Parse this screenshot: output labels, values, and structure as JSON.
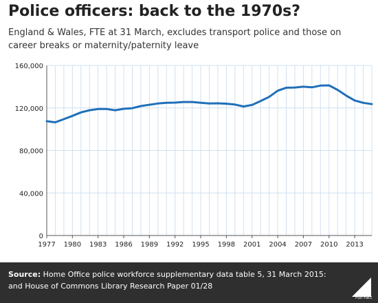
{
  "title": "Police officers: back to the 1970s?",
  "subtitle": "England & Wales, FTE at 31 March, excludes transport police and those on career breaks or maternity/paternity leave",
  "footer": {
    "source_label": "Source:",
    "source_text": "Home Office police workforce supplementary data table 5, 31 March 2015: and House of Commons Library Research Paper 01/28",
    "logo_text": "Full Fact"
  },
  "colors": {
    "line": "#1f6fb8",
    "grid": "#cfe0f1",
    "footer_bg": "#2f2f2f"
  },
  "chart_data": {
    "type": "line",
    "title": "Police officers: back to the 1970s?",
    "xlabel": "",
    "ylabel": "",
    "x": [
      1977,
      1978,
      1979,
      1980,
      1981,
      1982,
      1983,
      1984,
      1985,
      1986,
      1987,
      1988,
      1989,
      1990,
      1991,
      1992,
      1993,
      1994,
      1995,
      1996,
      1997,
      1998,
      1999,
      2000,
      2001,
      2002,
      2003,
      2004,
      2005,
      2006,
      2007,
      2008,
      2009,
      2010,
      2011,
      2012,
      2013,
      2014,
      2015
    ],
    "values": [
      107500,
      106500,
      109500,
      112500,
      115800,
      117800,
      119000,
      119000,
      117800,
      119200,
      119800,
      121800,
      123000,
      124200,
      124800,
      125000,
      125600,
      125600,
      124800,
      124200,
      124400,
      124000,
      123200,
      121400,
      122800,
      126500,
      130400,
      136200,
      139000,
      139200,
      140000,
      139400,
      141000,
      141200,
      137000,
      131600,
      127000,
      124800,
      123600
    ],
    "ylim": [
      0,
      160000
    ],
    "yticks": [
      0,
      40000,
      80000,
      120000,
      160000
    ],
    "ytick_labels": [
      "0",
      "40,000",
      "80,000",
      "120,000",
      "160,000"
    ],
    "xticks": [
      1977,
      1980,
      1983,
      1986,
      1989,
      1992,
      1995,
      1998,
      2001,
      2004,
      2007,
      2010,
      2013
    ],
    "xlim": [
      1977,
      2015
    ],
    "grid": true,
    "legend": "none"
  }
}
